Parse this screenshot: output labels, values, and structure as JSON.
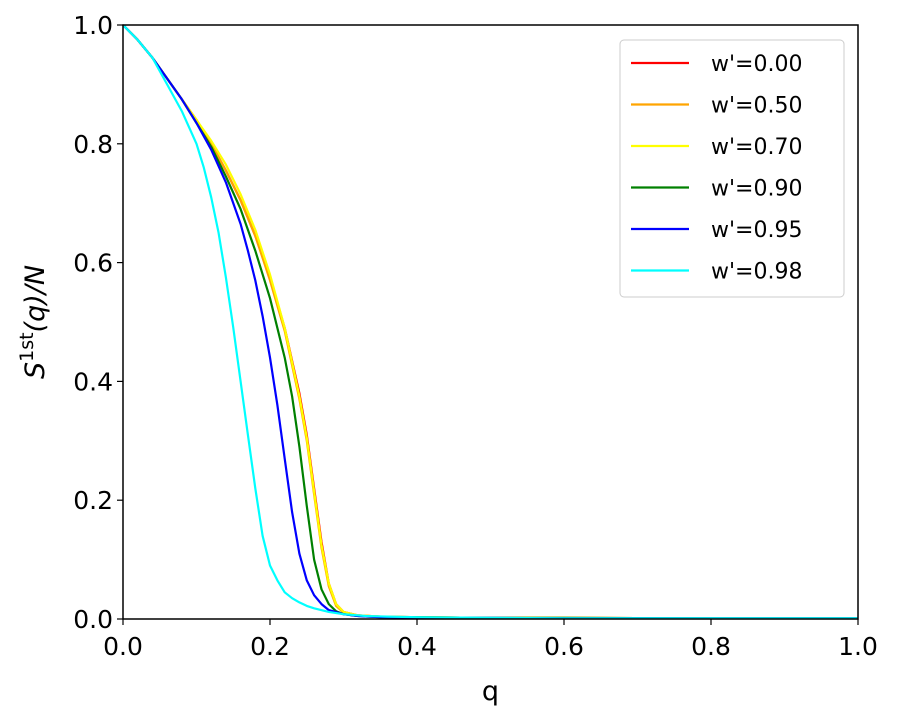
{
  "chart_data": {
    "type": "line",
    "title": "",
    "xlabel": "q",
    "ylabel_main": "S",
    "ylabel_sup": "1st",
    "ylabel_rest": "(q)/N",
    "xlim": [
      0,
      1
    ],
    "ylim": [
      0,
      1
    ],
    "xticks": [
      0,
      0.2,
      0.4,
      0.6,
      0.8,
      1.0
    ],
    "xtick_labels": [
      "0.0",
      "0.2",
      "0.4",
      "0.6",
      "0.8",
      "1.0"
    ],
    "yticks": [
      0,
      0.2,
      0.4,
      0.6,
      0.8,
      1.0
    ],
    "ytick_labels": [
      "0.0",
      "0.2",
      "0.4",
      "0.6",
      "0.8",
      "1.0"
    ],
    "grid": false,
    "legend_position": "top-right",
    "series": [
      {
        "name": "w'=0.00",
        "color": "#ff0000",
        "x": [
          0,
          0.02,
          0.04,
          0.06,
          0.08,
          0.1,
          0.12,
          0.14,
          0.16,
          0.18,
          0.2,
          0.22,
          0.24,
          0.25,
          0.26,
          0.27,
          0.28,
          0.29,
          0.3,
          0.32,
          0.35,
          0.4,
          0.5,
          0.6,
          0.8,
          1.0
        ],
        "y": [
          1.0,
          0.975,
          0.945,
          0.91,
          0.875,
          0.84,
          0.8,
          0.755,
          0.705,
          0.645,
          0.575,
          0.49,
          0.38,
          0.31,
          0.22,
          0.13,
          0.06,
          0.025,
          0.012,
          0.006,
          0.004,
          0.003,
          0.002,
          0.002,
          0.001,
          0.001
        ]
      },
      {
        "name": "w'=0.50",
        "color": "#ffa500",
        "x": [
          0,
          0.02,
          0.04,
          0.06,
          0.08,
          0.1,
          0.12,
          0.14,
          0.16,
          0.18,
          0.2,
          0.22,
          0.24,
          0.25,
          0.26,
          0.27,
          0.28,
          0.29,
          0.3,
          0.32,
          0.35,
          0.4,
          0.5,
          0.6,
          0.8,
          1.0
        ],
        "y": [
          1.0,
          0.975,
          0.945,
          0.91,
          0.875,
          0.84,
          0.8,
          0.755,
          0.705,
          0.645,
          0.57,
          0.485,
          0.37,
          0.3,
          0.21,
          0.12,
          0.055,
          0.022,
          0.011,
          0.006,
          0.004,
          0.003,
          0.002,
          0.002,
          0.001,
          0.001
        ]
      },
      {
        "name": "w'=0.70",
        "color": "#ffff00",
        "x": [
          0,
          0.02,
          0.04,
          0.06,
          0.08,
          0.1,
          0.12,
          0.14,
          0.16,
          0.18,
          0.2,
          0.22,
          0.24,
          0.25,
          0.26,
          0.27,
          0.28,
          0.29,
          0.3,
          0.32,
          0.35,
          0.4,
          0.5,
          0.6,
          0.8,
          1.0
        ],
        "y": [
          1.0,
          0.975,
          0.945,
          0.91,
          0.875,
          0.84,
          0.805,
          0.765,
          0.715,
          0.655,
          0.58,
          0.49,
          0.375,
          0.305,
          0.215,
          0.125,
          0.06,
          0.025,
          0.012,
          0.006,
          0.004,
          0.003,
          0.002,
          0.002,
          0.001,
          0.001
        ]
      },
      {
        "name": "w'=0.90",
        "color": "#008000",
        "x": [
          0,
          0.02,
          0.04,
          0.06,
          0.08,
          0.1,
          0.12,
          0.14,
          0.16,
          0.18,
          0.2,
          0.22,
          0.23,
          0.24,
          0.25,
          0.26,
          0.27,
          0.28,
          0.29,
          0.3,
          0.32,
          0.35,
          0.4,
          0.5,
          0.6,
          0.8,
          1.0
        ],
        "y": [
          1.0,
          0.975,
          0.945,
          0.91,
          0.875,
          0.835,
          0.795,
          0.745,
          0.69,
          0.62,
          0.54,
          0.44,
          0.375,
          0.29,
          0.19,
          0.1,
          0.05,
          0.025,
          0.013,
          0.008,
          0.005,
          0.003,
          0.003,
          0.002,
          0.002,
          0.001,
          0.001
        ]
      },
      {
        "name": "w'=0.95",
        "color": "#0000ff",
        "x": [
          0,
          0.02,
          0.04,
          0.06,
          0.08,
          0.1,
          0.12,
          0.14,
          0.16,
          0.17,
          0.18,
          0.19,
          0.2,
          0.21,
          0.22,
          0.23,
          0.24,
          0.25,
          0.26,
          0.27,
          0.28,
          0.3,
          0.32,
          0.35,
          0.4,
          0.5,
          0.6,
          0.8,
          1.0
        ],
        "y": [
          1.0,
          0.975,
          0.945,
          0.91,
          0.875,
          0.835,
          0.79,
          0.735,
          0.665,
          0.62,
          0.57,
          0.51,
          0.44,
          0.36,
          0.27,
          0.18,
          0.11,
          0.065,
          0.04,
          0.025,
          0.015,
          0.008,
          0.005,
          0.003,
          0.002,
          0.002,
          0.001,
          0.001,
          0.001
        ]
      },
      {
        "name": "w'=0.98",
        "color": "#00ffff",
        "x": [
          0,
          0.02,
          0.04,
          0.06,
          0.08,
          0.1,
          0.11,
          0.12,
          0.13,
          0.14,
          0.15,
          0.16,
          0.17,
          0.18,
          0.19,
          0.2,
          0.21,
          0.22,
          0.23,
          0.24,
          0.25,
          0.26,
          0.28,
          0.3,
          0.33,
          0.36,
          0.4,
          0.5,
          0.6,
          0.8,
          1.0
        ],
        "y": [
          1.0,
          0.975,
          0.945,
          0.9,
          0.855,
          0.8,
          0.76,
          0.71,
          0.65,
          0.575,
          0.49,
          0.4,
          0.31,
          0.22,
          0.14,
          0.09,
          0.065,
          0.045,
          0.035,
          0.028,
          0.022,
          0.018,
          0.012,
          0.008,
          0.005,
          0.004,
          0.003,
          0.002,
          0.001,
          0.001,
          0.001
        ]
      }
    ]
  }
}
